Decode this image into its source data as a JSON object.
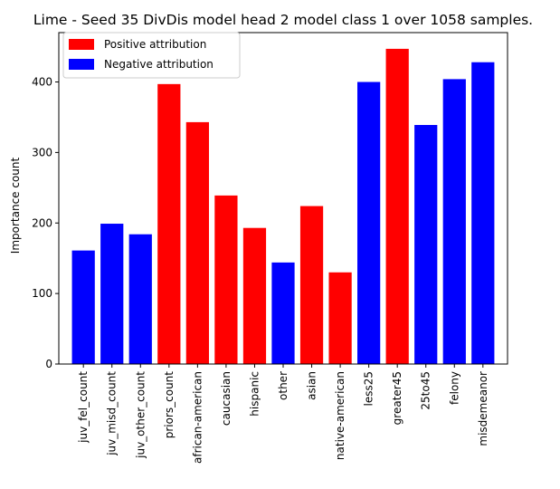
{
  "chart_data": {
    "type": "bar",
    "title": "Lime - Seed 35 DivDis model head 2 model class 1 over 1058 samples.",
    "xlabel": "",
    "ylabel": "Importance count",
    "ylim": [
      0,
      470
    ],
    "yticks": [
      0,
      100,
      200,
      300,
      400
    ],
    "grid": false,
    "legend_position": "top-left",
    "legend": [
      {
        "label": "Positive attribution",
        "color": "#ff0000"
      },
      {
        "label": "Negative attribution",
        "color": "#0000ff"
      }
    ],
    "categories": [
      "juv_fel_count",
      "juv_misd_count",
      "juv_other_count",
      "priors_count",
      "african-american",
      "caucasian",
      "hispanic",
      "other",
      "asian",
      "native-american",
      "less25",
      "greater45",
      "25to45",
      "felony",
      "misdemeanor"
    ],
    "values": [
      161,
      199,
      184,
      397,
      343,
      239,
      193,
      144,
      224,
      130,
      400,
      447,
      339,
      404,
      428
    ],
    "attribution": [
      "negative",
      "negative",
      "negative",
      "positive",
      "positive",
      "positive",
      "positive",
      "negative",
      "positive",
      "positive",
      "negative",
      "positive",
      "negative",
      "negative",
      "negative"
    ]
  }
}
